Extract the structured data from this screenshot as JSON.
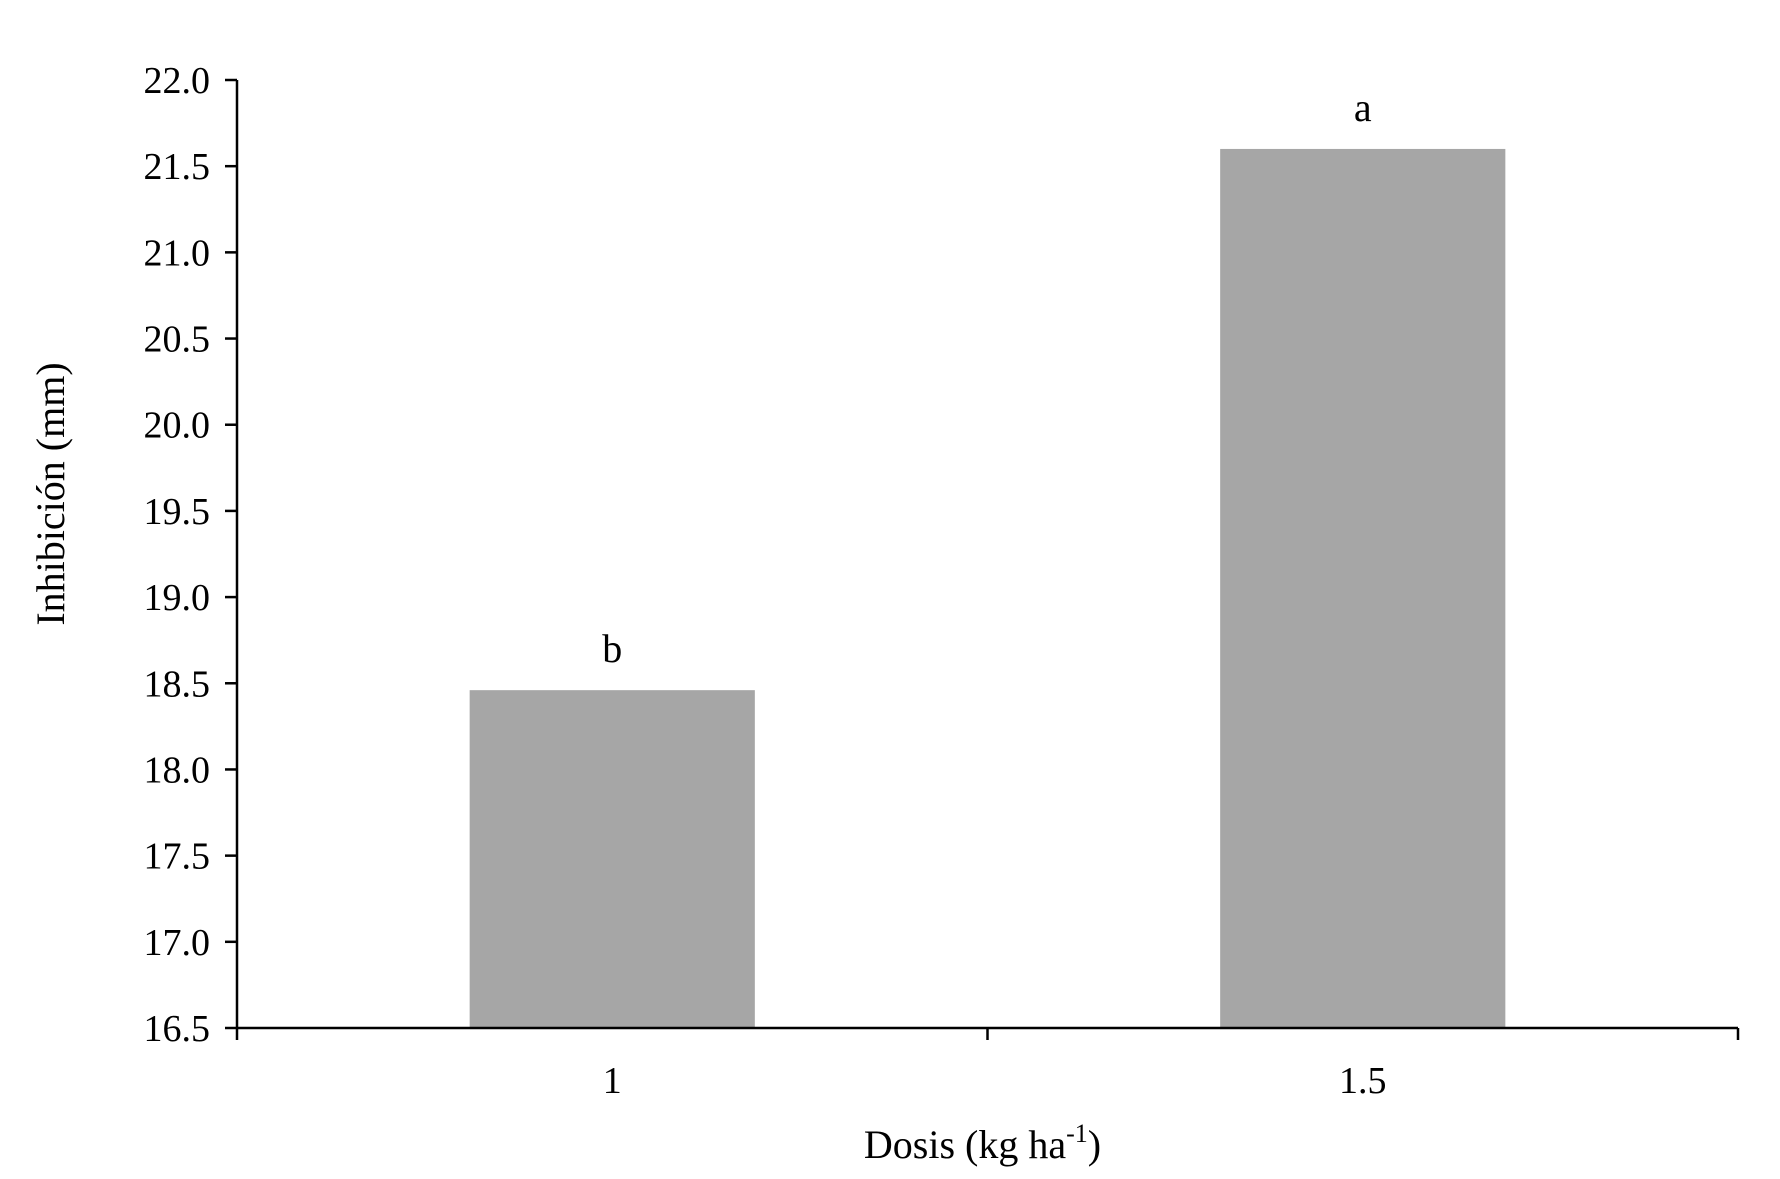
{
  "chart_data": {
    "type": "bar",
    "categories": [
      "1",
      "1.5"
    ],
    "values": [
      18.46,
      21.6
    ],
    "bar_labels": [
      "b",
      "a"
    ],
    "xlabel": "Dosis (kg ha",
    "xlabel_superscript": "-1",
    "xlabel_suffix": ")",
    "ylabel": "Inhibición (mm)",
    "ylim": [
      16.5,
      22.0
    ],
    "yticks": [
      "16.5",
      "17.0",
      "17.5",
      "18.0",
      "18.5",
      "19.0",
      "19.5",
      "20.0",
      "20.5",
      "21.0",
      "21.5",
      "22.0"
    ],
    "grid": false,
    "legend": "none",
    "bar_color": "#a6a6a6",
    "axis_color": "#000000"
  }
}
